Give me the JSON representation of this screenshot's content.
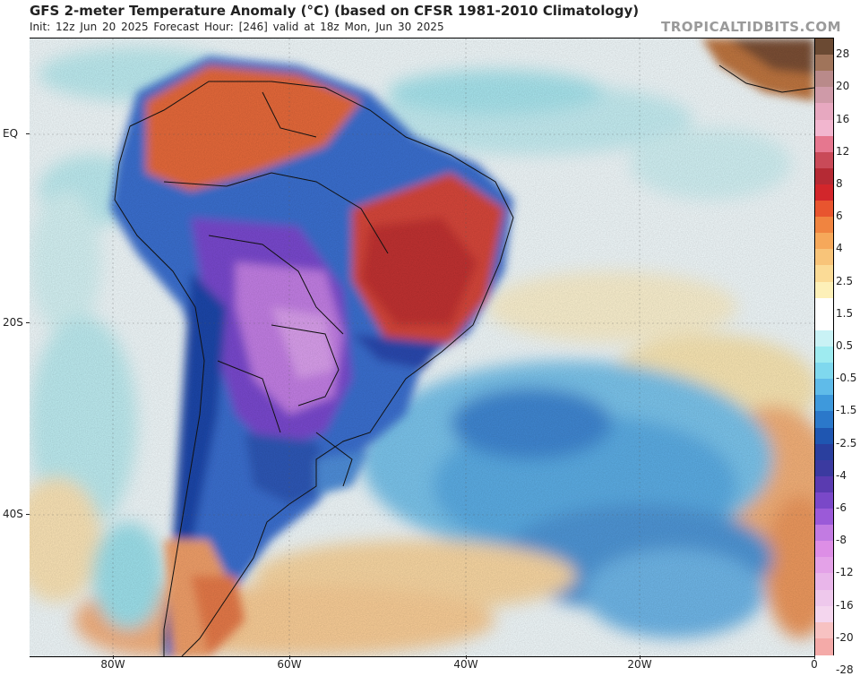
{
  "header": {
    "title": "GFS 2-meter Temperature Anomaly (°C) (based on CFSR 1981-2010 Climatology)",
    "subtitle": "Init: 12z Jun 20 2025   Forecast Hour: [246]   valid at 18z Mon, Jun 30 2025",
    "credit": "TROPICALTIDBITS.COM"
  },
  "axes": {
    "lat_labels": [
      "EQ",
      "20S",
      "40S"
    ],
    "lon_labels": [
      "80W",
      "60W",
      "40W",
      "20W",
      "0"
    ]
  },
  "colorbar": {
    "labels": [
      "28",
      "20",
      "16",
      "12",
      "8",
      "6",
      "4",
      "2.5",
      "1.5",
      "0.5",
      "-0.5",
      "-1.5",
      "-2.5",
      "-4",
      "-6",
      "-8",
      "-12",
      "-16",
      "-20",
      "-28"
    ],
    "colors": [
      "#6b4a33",
      "#a0745a",
      "#b98a8a",
      "#cf9aa8",
      "#e7a8c0",
      "#f2b6cf",
      "#e6778f",
      "#c94a58",
      "#b52a34",
      "#d2262b",
      "#e8552f",
      "#f08440",
      "#f6a85a",
      "#f8c479",
      "#fbdb96",
      "#fdf0b8",
      "#ffffff",
      "#ffffff",
      "#c9f2f5",
      "#9eebf0",
      "#7fd8ee",
      "#5fbbe9",
      "#3e99dc",
      "#2b78ca",
      "#1f56b1",
      "#2a3f9e",
      "#3b3aa0",
      "#5a3bb0",
      "#7a48c8",
      "#9b5ad8",
      "#c27be2",
      "#dd8ee6",
      "#e4a2e8",
      "#e9b6ea",
      "#eec8ec",
      "#f4d6ee",
      "#f7c2c2",
      "#f4aaa8"
    ]
  }
}
